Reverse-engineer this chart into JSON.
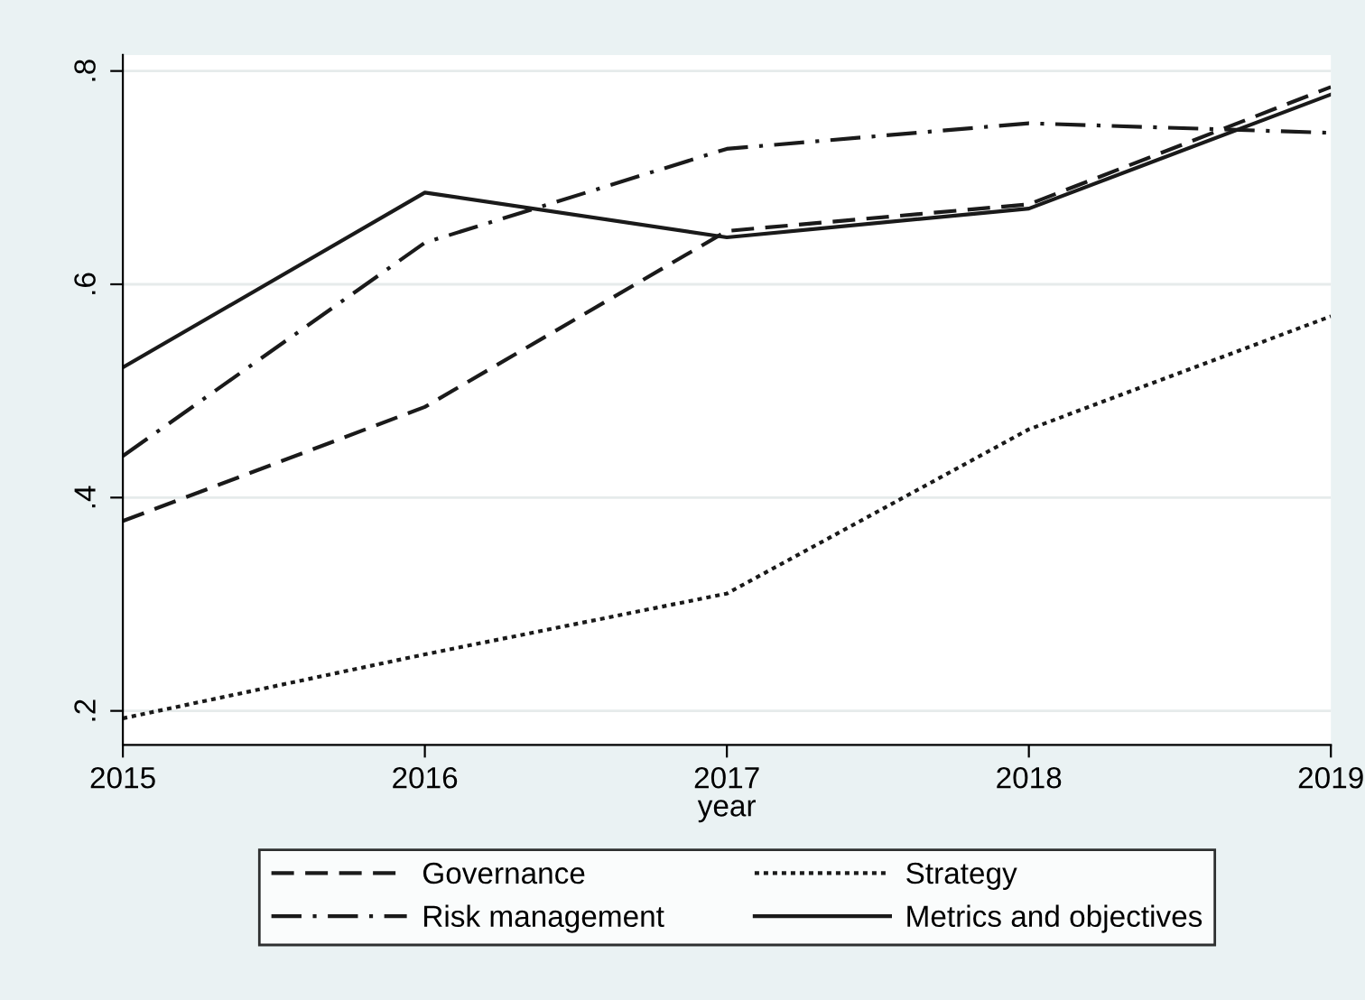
{
  "chart_data": {
    "type": "line",
    "xlabel": "year",
    "x": [
      2015,
      2016,
      2017,
      2018,
      2019
    ],
    "series": [
      {
        "name": "Governance",
        "color": "#1a1a1a",
        "line_style": "dashed",
        "values": [
          0.378,
          0.485,
          0.65,
          0.675,
          0.785
        ]
      },
      {
        "name": "Strategy",
        "color": "#1a1a1a",
        "line_style": "dotted",
        "values": [
          0.193,
          0.253,
          0.31,
          0.464,
          0.57
        ]
      },
      {
        "name": "Risk management",
        "color": "#1a1a1a",
        "line_style": "dashdot",
        "values": [
          0.439,
          0.639,
          0.727,
          0.751,
          0.742
        ]
      },
      {
        "name": "Metrics and objectives",
        "color": "#1a1a1a",
        "line_style": "solid",
        "values": [
          0.522,
          0.686,
          0.644,
          0.671,
          0.778
        ]
      }
    ],
    "xlim": [
      2015,
      2019
    ],
    "xticks": [
      2015,
      2016,
      2017,
      2018,
      2019
    ],
    "ylim": [
      0.168,
      0.815
    ],
    "yticks": [
      {
        "value": 0.2,
        "label": ".2"
      },
      {
        "value": 0.4,
        "label": ".4"
      },
      {
        "value": 0.6,
        "label": ".6"
      },
      {
        "value": 0.8,
        "label": ".8"
      }
    ],
    "grid": "y",
    "legend": "bottom",
    "marker": "none"
  }
}
